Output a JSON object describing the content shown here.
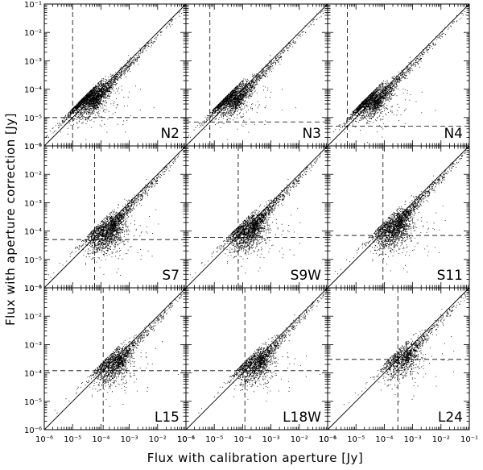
{
  "chart_data": {
    "type": "scatter",
    "layout": "3x3 grid of log-log scatter panels with shared axes",
    "xlabel": "Flux with calibration aperture [Jy]",
    "ylabel": "Flux with aperture correction [Jy]",
    "xscale": "log",
    "yscale": "log",
    "xlim": [
      1e-06,
      0.1
    ],
    "ylim": [
      1e-06,
      0.1
    ],
    "tick_labels": [
      "10⁻⁶",
      "10⁻⁵",
      "10⁻⁴",
      "10⁻³",
      "10⁻²",
      "10⁻¹"
    ],
    "reference_line": "y = x",
    "panels": [
      {
        "label": "N2",
        "x_threshold": 1e-05,
        "y_threshold": 1e-05,
        "cloud_center": [
          3.5e-05,
          5e-05
        ],
        "n_points": 2600
      },
      {
        "label": "N3",
        "x_threshold": 7e-06,
        "y_threshold": 7e-06,
        "cloud_center": [
          3.5e-05,
          5e-05
        ],
        "n_points": 2600
      },
      {
        "label": "N4",
        "x_threshold": 5e-06,
        "y_threshold": 5e-06,
        "cloud_center": [
          3e-05,
          4e-05
        ],
        "n_points": 2600
      },
      {
        "label": "S7",
        "x_threshold": 6e-05,
        "y_threshold": 5e-05,
        "cloud_center": [
          0.00015,
          9e-05
        ],
        "n_points": 2300
      },
      {
        "label": "S9W",
        "x_threshold": 7e-05,
        "y_threshold": 6e-05,
        "cloud_center": [
          0.00015,
          0.0001
        ],
        "n_points": 2300
      },
      {
        "label": "S11",
        "x_threshold": 9e-05,
        "y_threshold": 7e-05,
        "cloud_center": [
          0.0002,
          0.00012
        ],
        "n_points": 2500
      },
      {
        "label": "L15",
        "x_threshold": 0.00012,
        "y_threshold": 0.00012,
        "cloud_center": [
          0.00025,
          0.0002
        ],
        "n_points": 1700
      },
      {
        "label": "L18W",
        "x_threshold": 0.00012,
        "y_threshold": 0.00012,
        "cloud_center": [
          0.00025,
          0.0002
        ],
        "n_points": 1700
      },
      {
        "label": "L24",
        "x_threshold": 0.0003,
        "y_threshold": 0.0003,
        "cloud_center": [
          0.0004,
          0.0003
        ],
        "n_points": 1300
      }
    ]
  }
}
